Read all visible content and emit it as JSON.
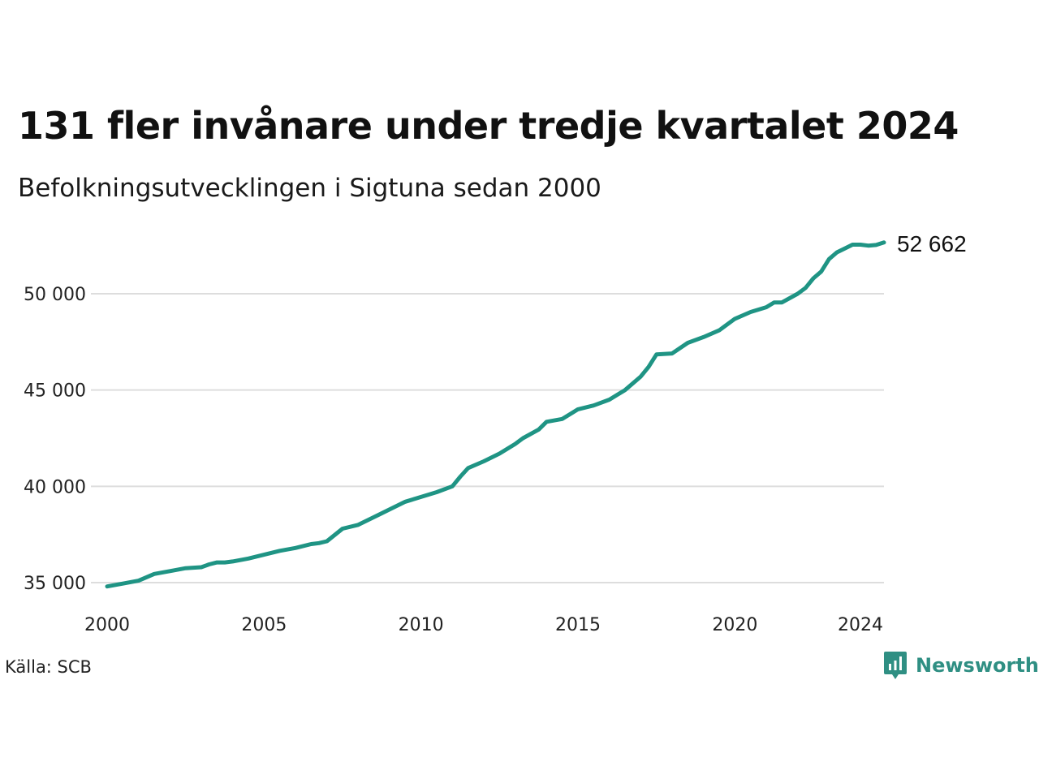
{
  "title": "131 fler invånare under tredje kvartalet 2024",
  "subtitle": "Befolkningsutvecklingen i Sigtuna sedan 2000",
  "source": "Källa: SCB",
  "brand": {
    "name": "Newsworthy",
    "icon": "newsworthy-logo-icon",
    "color": "#2f8f83"
  },
  "colors": {
    "line": "#1f9484",
    "grid": "#dddddd"
  },
  "chart_data": {
    "type": "line",
    "title": "131 fler invånare under tredje kvartalet 2024",
    "subtitle": "Befolkningsutvecklingen i Sigtuna sedan 2000",
    "xlabel": "",
    "ylabel": "",
    "xlim": [
      2000,
      2024.75
    ],
    "ylim": [
      34500,
      53500
    ],
    "x_ticks": [
      2000,
      2005,
      2010,
      2015,
      2020,
      2024
    ],
    "y_ticks": [
      35000,
      40000,
      45000,
      50000
    ],
    "y_tick_labels": [
      "35 000",
      "40 000",
      "45 000",
      "50 000"
    ],
    "grid": "horizontal",
    "end_label": "52 662",
    "series": [
      {
        "x": [
          2000,
          2000.5,
          2001,
          2001.5,
          2002,
          2002.5,
          2003,
          2003.25,
          2003.5,
          2003.75,
          2004,
          2004.5,
          2005,
          2005.5,
          2006,
          2006.5,
          2006.75,
          2007,
          2007.5,
          2008,
          2008.5,
          2009,
          2009.5,
          2010,
          2010.5,
          2011,
          2011.25,
          2011.5,
          2012,
          2012.5,
          2013,
          2013.25,
          2013.75,
          2014,
          2014.5,
          2015,
          2015.5,
          2016,
          2016.5,
          2017,
          2017.25,
          2017.5,
          2018,
          2018.5,
          2019,
          2019.5,
          2020,
          2020.5,
          2021,
          2021.25,
          2021.5,
          2022,
          2022.25,
          2022.5,
          2022.75,
          2023,
          2023.25,
          2023.5,
          2023.75,
          2024,
          2024.25,
          2024.5,
          2024.75
        ],
        "values": [
          34800,
          34950,
          35100,
          35450,
          35600,
          35750,
          35800,
          35950,
          36050,
          36050,
          36100,
          36250,
          36450,
          36650,
          36800,
          37000,
          37050,
          37150,
          37800,
          38000,
          38400,
          38800,
          39200,
          39450,
          39700,
          40000,
          40500,
          40950,
          41300,
          41700,
          42200,
          42500,
          42950,
          43350,
          43500,
          44000,
          44200,
          44500,
          45000,
          45700,
          46200,
          46850,
          46900,
          47450,
          47750,
          48100,
          48700,
          49050,
          49300,
          49550,
          49550,
          50000,
          50300,
          50800,
          51150,
          51800,
          52150,
          52350,
          52550,
          52550,
          52500,
          52531,
          52662
        ]
      }
    ]
  }
}
